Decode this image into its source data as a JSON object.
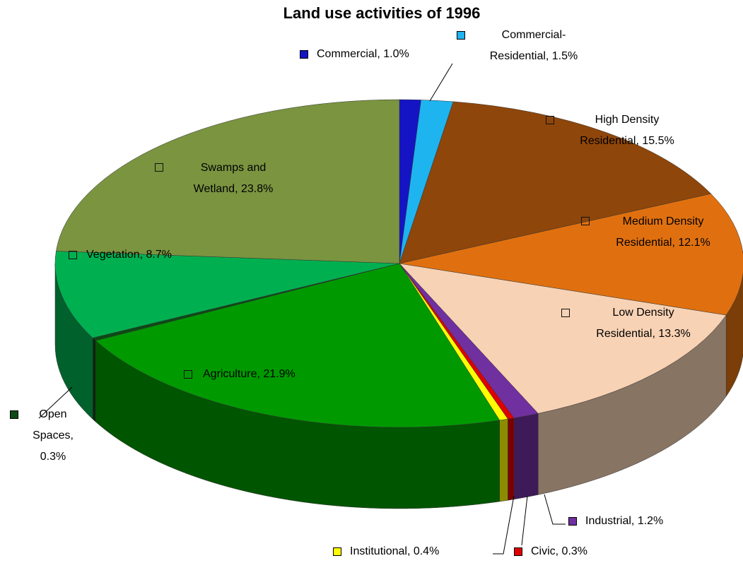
{
  "chart_data": {
    "type": "pie3d",
    "title": "Land  use activities of 1996",
    "categories": [
      "Commercial",
      "Commercial-Residential",
      "High Density Residential",
      "Medium Density Residential",
      "Low Density Residential",
      "Industrial",
      "Civic",
      "Institutional",
      "Agriculture",
      "Open Spaces",
      "Vegetation",
      "Swamps and Wetland"
    ],
    "values": [
      1.0,
      1.5,
      15.5,
      12.1,
      13.3,
      1.2,
      0.3,
      0.4,
      21.9,
      0.3,
      8.7,
      23.8
    ],
    "value_labels": [
      "Commercial, 1.0%",
      "Commercial-Residential, 1.5%",
      "High Density Residential, 15.5%",
      "Medium Density Residential, 12.1%",
      "Low Density Residential, 13.3%",
      "Industrial, 1.2%",
      "Civic, 0.3%",
      "Institutional, 0.4%",
      "Agriculture, 21.9%",
      "Open Spaces, 0.3%",
      "Vegetation, 8.7%",
      "Swamps and Wetland, 23.8%"
    ],
    "colors": [
      "#1414c4",
      "#1eb4f0",
      "#8f460a",
      "#e0700f",
      "#f8d2b4",
      "#7030a0",
      "#e00000",
      "#ffff00",
      "#009a00",
      "#0b4a14",
      "#00b050",
      "#7a9440"
    ]
  }
}
